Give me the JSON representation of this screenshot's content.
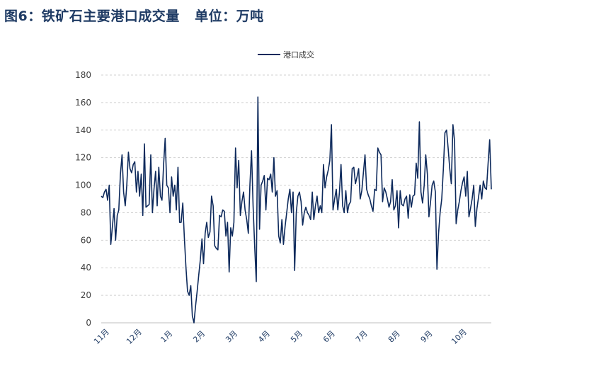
{
  "title": "图6：铁矿石主要港口成交量   单位：万吨",
  "chart_data": {
    "type": "line",
    "legend": "top-center",
    "grid": true,
    "ylim": [
      0,
      180
    ],
    "yticks": [
      "0",
      "20",
      "40",
      "60",
      "80",
      "100",
      "120",
      "140",
      "160",
      "180"
    ],
    "xtick_labels": [
      "11月",
      "12月",
      "1月",
      "2月",
      "3月",
      "4月",
      "5月",
      "6月",
      "7月",
      "8月",
      "9月",
      "10月"
    ],
    "series": [
      {
        "name": "港口成交",
        "color": "#0e2a5c",
        "values": [
          92,
          91,
          95,
          97,
          89,
          100,
          57,
          70,
          83,
          60,
          78,
          82,
          108,
          122,
          95,
          85,
          100,
          124,
          112,
          109,
          115,
          117,
          95,
          110,
          92,
          108,
          78,
          130,
          84,
          85,
          86,
          122,
          80,
          97,
          110,
          85,
          113,
          92,
          89,
          115,
          134,
          100,
          98,
          80,
          106,
          92,
          100,
          82,
          113,
          73,
          73,
          87,
          62,
          40,
          23,
          20,
          27,
          5,
          0,
          12,
          23,
          35,
          46,
          61,
          43,
          65,
          73,
          62,
          66,
          92,
          85,
          56,
          54,
          53,
          78,
          77,
          82,
          81,
          63,
          73,
          37,
          69,
          63,
          73,
          127,
          98,
          118,
          78,
          88,
          95,
          82,
          75,
          65,
          100,
          125,
          85,
          55,
          30,
          164,
          68,
          100,
          103,
          107,
          82,
          105,
          104,
          108,
          95,
          120,
          92,
          96,
          63,
          58,
          75,
          57,
          70,
          80,
          90,
          97,
          80,
          95,
          38,
          80,
          92,
          95,
          88,
          71,
          80,
          84,
          80,
          78,
          75,
          95,
          75,
          85,
          92,
          80,
          85,
          80,
          115,
          98,
          106,
          111,
          118,
          144,
          82,
          90,
          97,
          82,
          95,
          115,
          85,
          80,
          96,
          80,
          86,
          88,
          112,
          113,
          101,
          106,
          112,
          90,
          96,
          109,
          122,
          97,
          93,
          90,
          85,
          81,
          97,
          96,
          127,
          124,
          122,
          88,
          98,
          95,
          90,
          84,
          88,
          104,
          82,
          85,
          96,
          69,
          96,
          86,
          85,
          90,
          92,
          76,
          93,
          84,
          92,
          93,
          116,
          105,
          146,
          95,
          87,
          100,
          122,
          108,
          77,
          88,
          100,
          103,
          95,
          39,
          65,
          80,
          90,
          112,
          138,
          140,
          127,
          112,
          101,
          144,
          132,
          72,
          82,
          88,
          96,
          102,
          106,
          92,
          110,
          77,
          83,
          90,
          100,
          70,
          83,
          91,
          100,
          90,
          103,
          98,
          97,
          116,
          133,
          97
        ]
      }
    ]
  }
}
